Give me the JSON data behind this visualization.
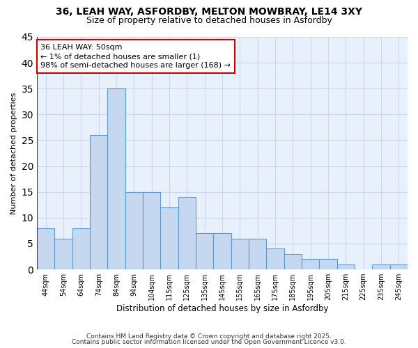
{
  "title_line1": "36, LEAH WAY, ASFORDBY, MELTON MOWBRAY, LE14 3XY",
  "title_line2": "Size of property relative to detached houses in Asfordby",
  "xlabel": "Distribution of detached houses by size in Asfordby",
  "ylabel": "Number of detached properties",
  "categories": [
    "44sqm",
    "54sqm",
    "64sqm",
    "74sqm",
    "84sqm",
    "94sqm",
    "104sqm",
    "115sqm",
    "125sqm",
    "135sqm",
    "145sqm",
    "155sqm",
    "165sqm",
    "175sqm",
    "185sqm",
    "195sqm",
    "205sqm",
    "215sqm",
    "225sqm",
    "235sqm",
    "245sqm"
  ],
  "values": [
    8,
    6,
    8,
    26,
    35,
    15,
    15,
    12,
    14,
    7,
    7,
    6,
    6,
    4,
    3,
    2,
    2,
    1,
    0,
    1,
    1
  ],
  "bar_color": "#c5d8f0",
  "bar_edge_color": "#5b9bd5",
  "background_color": "#ffffff",
  "plot_bg_color": "#e8f0fb",
  "grid_color": "#c8d8ee",
  "annotation_box_text": "36 LEAH WAY: 50sqm\n← 1% of detached houses are smaller (1)\n98% of semi-detached houses are larger (168) →",
  "annotation_box_color": "#ffffff",
  "annotation_box_edge_color": "#cc0000",
  "vline_color": "#cc0000",
  "ylim": [
    0,
    45
  ],
  "yticks": [
    0,
    5,
    10,
    15,
    20,
    25,
    30,
    35,
    40,
    45
  ],
  "footer_line1": "Contains HM Land Registry data © Crown copyright and database right 2025.",
  "footer_line2": "Contains public sector information licensed under the Open Government Licence v3.0."
}
